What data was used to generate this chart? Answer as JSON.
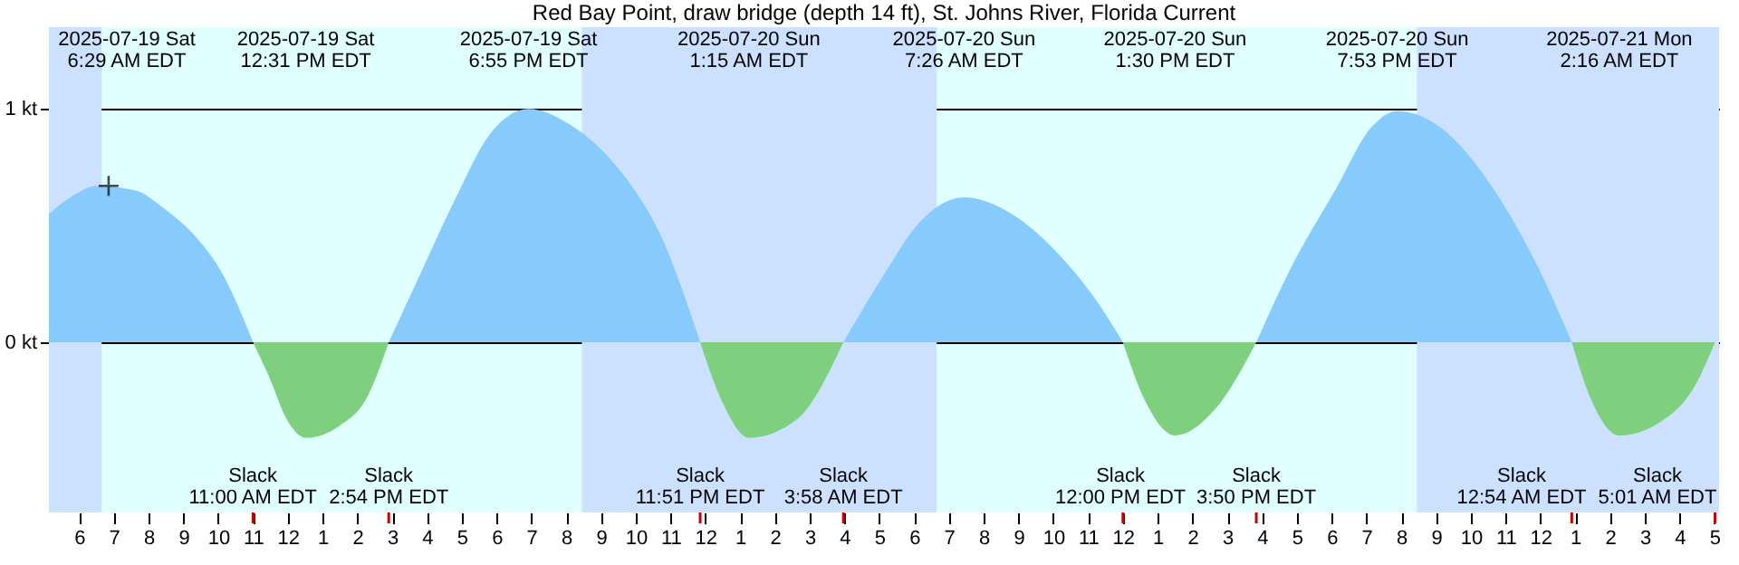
{
  "chart_data": {
    "type": "area",
    "title": "Red Bay Point, draw bridge (depth 14 ft), St. Johns River, Florida Current",
    "x": [
      "2025-07-19T05:08",
      "2025-07-19T05:58",
      "2025-07-19T06:29",
      "2025-07-19T07:38",
      "2025-07-19T08:28",
      "2025-07-19T09:18",
      "2025-07-19T10:08",
      "2025-07-19T11:00",
      "2025-07-19T11:28",
      "2025-07-19T11:58",
      "2025-07-19T12:31",
      "2025-07-19T13:28",
      "2025-07-19T14:18",
      "2025-07-19T14:54",
      "2025-07-19T15:48",
      "2025-07-19T16:48",
      "2025-07-19T17:48",
      "2025-07-19T18:55",
      "2025-07-19T20:08",
      "2025-07-19T21:28",
      "2025-07-19T22:48",
      "2025-07-19T23:51",
      "2025-07-20T00:28",
      "2025-07-20T01:15",
      "2025-07-20T02:38",
      "2025-07-20T03:58",
      "2025-07-20T05:08",
      "2025-07-20T06:08",
      "2025-07-20T07:26",
      "2025-07-20T08:48",
      "2025-07-20T10:08",
      "2025-07-20T11:08",
      "2025-07-20T12:00",
      "2025-07-20T12:38",
      "2025-07-20T13:30",
      "2025-07-20T14:38",
      "2025-07-20T15:50",
      "2025-07-20T16:48",
      "2025-07-20T18:08",
      "2025-07-20T19:08",
      "2025-07-20T19:53",
      "2025-07-20T21:08",
      "2025-07-20T22:38",
      "2025-07-20T23:48",
      "2025-07-21T00:54",
      "2025-07-21T01:28",
      "2025-07-21T02:16",
      "2025-07-21T03:28",
      "2025-07-21T04:28",
      "2025-07-21T05:01"
    ],
    "series": [
      {
        "color": "#87cbfd",
        "values": [
          0.55,
          0.64,
          0.67,
          0.65,
          0.57,
          0.46,
          0.29,
          0,
          null,
          null,
          null,
          null,
          null,
          0,
          0.29,
          0.61,
          0.89,
          1.0,
          0.93,
          0.75,
          0.43,
          0,
          null,
          null,
          null,
          0,
          0.29,
          0.51,
          0.62,
          0.55,
          0.38,
          0.2,
          0,
          null,
          null,
          null,
          0,
          0.31,
          0.66,
          0.92,
          0.99,
          0.92,
          0.66,
          0.36,
          0,
          null,
          null,
          null,
          null,
          null
        ]
      },
      {
        "color": "#7ecf7e",
        "values": [
          null,
          null,
          null,
          null,
          null,
          null,
          null,
          0,
          -0.15,
          -0.33,
          -0.41,
          -0.36,
          -0.23,
          0,
          null,
          null,
          null,
          null,
          null,
          null,
          null,
          0,
          -0.25,
          -0.41,
          -0.33,
          0,
          null,
          null,
          null,
          null,
          null,
          null,
          0,
          -0.25,
          -0.4,
          -0.29,
          0,
          null,
          null,
          null,
          null,
          null,
          null,
          null,
          0,
          -0.25,
          -0.4,
          -0.34,
          -0.18,
          0
        ]
      },
      {
        "type": "scatter",
        "marker": "cross",
        "color": "#000000",
        "x": [
          "2025-07-19T06:51"
        ],
        "values": [
          0.67
        ]
      }
    ],
    "xlim": [
      "2025-07-19T05:08",
      "2025-07-21T05:08"
    ],
    "xticks": [
      {
        "value": "2025-07-19T06:00",
        "label": "6"
      },
      {
        "value": "2025-07-19T07:00",
        "label": "7"
      },
      {
        "value": "2025-07-19T08:00",
        "label": "8"
      },
      {
        "value": "2025-07-19T09:00",
        "label": "9"
      },
      {
        "value": "2025-07-19T10:00",
        "label": "10"
      },
      {
        "value": "2025-07-19T11:00",
        "label": "11"
      },
      {
        "value": "2025-07-19T12:00",
        "label": "12"
      },
      {
        "value": "2025-07-19T13:00",
        "label": "1"
      },
      {
        "value": "2025-07-19T14:00",
        "label": "2"
      },
      {
        "value": "2025-07-19T15:00",
        "label": "3"
      },
      {
        "value": "2025-07-19T16:00",
        "label": "4"
      },
      {
        "value": "2025-07-19T17:00",
        "label": "5"
      },
      {
        "value": "2025-07-19T18:00",
        "label": "6"
      },
      {
        "value": "2025-07-19T19:00",
        "label": "7"
      },
      {
        "value": "2025-07-19T20:00",
        "label": "8"
      },
      {
        "value": "2025-07-19T21:00",
        "label": "9"
      },
      {
        "value": "2025-07-19T22:00",
        "label": "10"
      },
      {
        "value": "2025-07-19T23:00",
        "label": "11"
      },
      {
        "value": "2025-07-20T00:00",
        "label": "12"
      },
      {
        "value": "2025-07-20T01:00",
        "label": "1"
      },
      {
        "value": "2025-07-20T02:00",
        "label": "2"
      },
      {
        "value": "2025-07-20T03:00",
        "label": "3"
      },
      {
        "value": "2025-07-20T04:00",
        "label": "4"
      },
      {
        "value": "2025-07-20T05:00",
        "label": "5"
      },
      {
        "value": "2025-07-20T06:00",
        "label": "6"
      },
      {
        "value": "2025-07-20T07:00",
        "label": "7"
      },
      {
        "value": "2025-07-20T08:00",
        "label": "8"
      },
      {
        "value": "2025-07-20T09:00",
        "label": "9"
      },
      {
        "value": "2025-07-20T10:00",
        "label": "10"
      },
      {
        "value": "2025-07-20T11:00",
        "label": "11"
      },
      {
        "value": "2025-07-20T12:00",
        "label": "12"
      },
      {
        "value": "2025-07-20T13:00",
        "label": "1"
      },
      {
        "value": "2025-07-20T14:00",
        "label": "2"
      },
      {
        "value": "2025-07-20T15:00",
        "label": "3"
      },
      {
        "value": "2025-07-20T16:00",
        "label": "4"
      },
      {
        "value": "2025-07-20T17:00",
        "label": "5"
      },
      {
        "value": "2025-07-20T18:00",
        "label": "6"
      },
      {
        "value": "2025-07-20T19:00",
        "label": "7"
      },
      {
        "value": "2025-07-20T20:00",
        "label": "8"
      },
      {
        "value": "2025-07-20T21:00",
        "label": "9"
      },
      {
        "value": "2025-07-20T22:00",
        "label": "10"
      },
      {
        "value": "2025-07-20T23:00",
        "label": "11"
      },
      {
        "value": "2025-07-21T00:00",
        "label": "12"
      },
      {
        "value": "2025-07-21T01:00",
        "label": "1"
      },
      {
        "value": "2025-07-21T02:00",
        "label": "2"
      },
      {
        "value": "2025-07-21T03:00",
        "label": "3"
      },
      {
        "value": "2025-07-21T04:00",
        "label": "4"
      },
      {
        "value": "2025-07-21T05:00",
        "label": "5"
      }
    ],
    "ylim": [
      -0.73,
      1.35
    ],
    "yticks": [
      {
        "value": 0,
        "label": "0 kt"
      },
      {
        "value": 1,
        "label": "1 kt"
      }
    ],
    "grid": "y",
    "bands": [
      {
        "axis": "x",
        "from": "2025-07-19T05:08",
        "to": "2025-07-19T06:39",
        "color": "#cce0ff"
      },
      {
        "axis": "x",
        "from": "2025-07-19T20:27",
        "to": "2025-07-20T06:39",
        "color": "#cce0ff"
      },
      {
        "axis": "x",
        "from": "2025-07-20T20:27",
        "to": "2025-07-21T05:08",
        "color": "#cce0ff"
      }
    ],
    "annotations": [
      "2025-07-19 Sat\n6:29 AM EDT",
      "2025-07-19 Sat\n12:31 PM EDT",
      "2025-07-19 Sat\n6:55 PM EDT",
      "2025-07-20 Sun\n1:15 AM EDT",
      "2025-07-20 Sun\n7:26 AM EDT",
      "2025-07-20 Sun\n1:30 PM EDT",
      "2025-07-20 Sun\n7:53 PM EDT",
      "2025-07-21 Mon\n2:16 AM EDT",
      "Slack\n11:00 AM EDT",
      "Slack\n2:54 PM EDT",
      "Slack\n11:51 PM EDT",
      "Slack\n3:58 AM EDT",
      "Slack\n12:00 PM EDT",
      "Slack\n3:50 PM EDT",
      "Slack\n12:54 AM EDT",
      "Slack\n5:01 AM EDT"
    ]
  }
}
